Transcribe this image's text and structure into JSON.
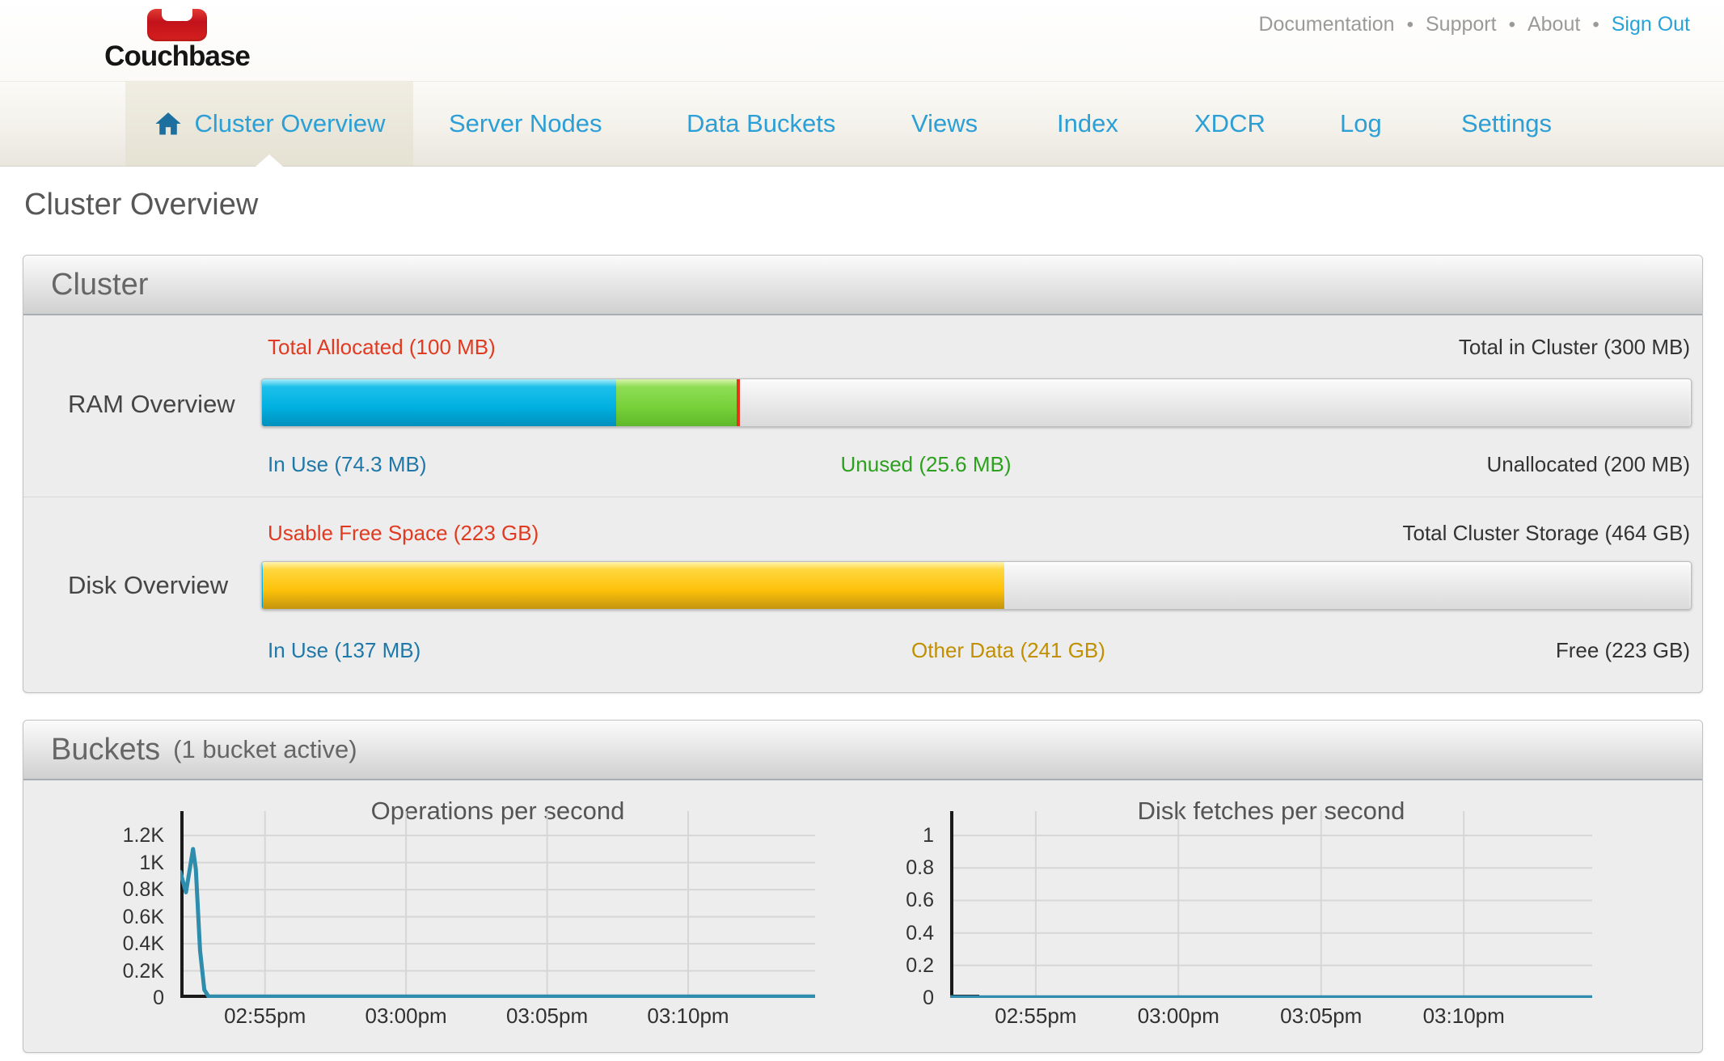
{
  "header": {
    "logo_text": "Couchbase",
    "links": [
      {
        "label": "Documentation"
      },
      {
        "label": "Support"
      },
      {
        "label": "About"
      },
      {
        "label": "Sign Out"
      }
    ]
  },
  "nav": {
    "tabs": [
      {
        "label": "Cluster Overview",
        "active": true
      },
      {
        "label": "Server Nodes",
        "active": false
      },
      {
        "label": "Data Buckets",
        "active": false
      },
      {
        "label": "Views",
        "active": false
      },
      {
        "label": "Index",
        "active": false
      },
      {
        "label": "XDCR",
        "active": false
      },
      {
        "label": "Log",
        "active": false
      },
      {
        "label": "Settings",
        "active": false
      }
    ]
  },
  "page": {
    "title": "Cluster Overview"
  },
  "cluster_panel": {
    "title": "Cluster",
    "ram": {
      "row_label": "RAM Overview",
      "top_left_label": "Total Allocated (100 MB)",
      "top_right_label": "Total in Cluster (300 MB)",
      "bottom_left_label": "In Use (74.3 MB)",
      "bottom_mid_label": "Unused (25.6 MB)",
      "bottom_right_label": "Unallocated (200 MB)",
      "in_use_mb": 74.3,
      "unused_mb": 25.6,
      "allocated_mb": 100,
      "total_mb": 300
    },
    "disk": {
      "row_label": "Disk Overview",
      "top_left_label": "Usable Free Space (223 GB)",
      "top_right_label": "Total Cluster Storage (464 GB)",
      "bottom_left_label": "In Use (137 MB)",
      "bottom_mid_label": "Other Data (241 GB)",
      "bottom_right_label": "Free (223 GB)",
      "in_use_gb": 0.134,
      "other_data_gb": 241,
      "free_gb": 223,
      "total_gb": 464
    }
  },
  "buckets_panel": {
    "title": "Buckets",
    "subtitle": "(1 bucket active)"
  },
  "chart_data": [
    {
      "type": "line",
      "title": "Operations per second",
      "xlabel": "",
      "ylabel": "",
      "grid": true,
      "x_range_minutes": [
        0,
        22.5
      ],
      "x_ticks": [
        {
          "minute": 3,
          "label": "02:55pm"
        },
        {
          "minute": 8,
          "label": "03:00pm"
        },
        {
          "minute": 13,
          "label": "03:05pm"
        },
        {
          "minute": 18,
          "label": "03:10pm"
        }
      ],
      "y_axis_max": 1380,
      "y_ticks": [
        {
          "value": 0,
          "label": "0"
        },
        {
          "value": 200,
          "label": "0.2K"
        },
        {
          "value": 400,
          "label": "0.4K"
        },
        {
          "value": 600,
          "label": "0.6K"
        },
        {
          "value": 800,
          "label": "0.8K"
        },
        {
          "value": 1000,
          "label": "1K"
        },
        {
          "value": 1200,
          "label": "1.2K"
        }
      ],
      "points": [
        [
          0,
          930
        ],
        [
          0.2,
          780
        ],
        [
          0.45,
          1100
        ],
        [
          0.55,
          950
        ],
        [
          0.7,
          350
        ],
        [
          0.85,
          60
        ],
        [
          1.0,
          10
        ],
        [
          22.5,
          10
        ]
      ],
      "line_color": "#2e8cad"
    },
    {
      "type": "line",
      "title": "Disk fetches per second",
      "xlabel": "",
      "ylabel": "",
      "grid": true,
      "x_range_minutes": [
        0,
        22.5
      ],
      "x_ticks": [
        {
          "minute": 3,
          "label": "02:55pm"
        },
        {
          "minute": 8,
          "label": "03:00pm"
        },
        {
          "minute": 13,
          "label": "03:05pm"
        },
        {
          "minute": 18,
          "label": "03:10pm"
        }
      ],
      "y_axis_max": 1.15,
      "y_ticks": [
        {
          "value": 0,
          "label": "0"
        },
        {
          "value": 0.2,
          "label": "0.2"
        },
        {
          "value": 0.4,
          "label": "0.4"
        },
        {
          "value": 0.6,
          "label": "0.6"
        },
        {
          "value": 0.8,
          "label": "0.8"
        },
        {
          "value": 1.0,
          "label": "1"
        }
      ],
      "points": [
        [
          0,
          0.004
        ],
        [
          22.5,
          0.004
        ]
      ],
      "line_color": "#2e8cad"
    }
  ],
  "colors": {
    "brand_red": "#d6201f",
    "accent_blue": "#2b9fd6",
    "signout_blue": "#27a3dc",
    "label_red": "#e23a20",
    "label_blue": "#1f78a8",
    "label_green": "#2da01f",
    "label_gold": "#c18f00",
    "ram_in_use_bar": "#00b0e0",
    "ram_unused_bar": "#76d13a",
    "disk_other_bar": "#fdc10a",
    "allocated_marker": "#e8321e",
    "chart_line": "#2e8cad"
  }
}
